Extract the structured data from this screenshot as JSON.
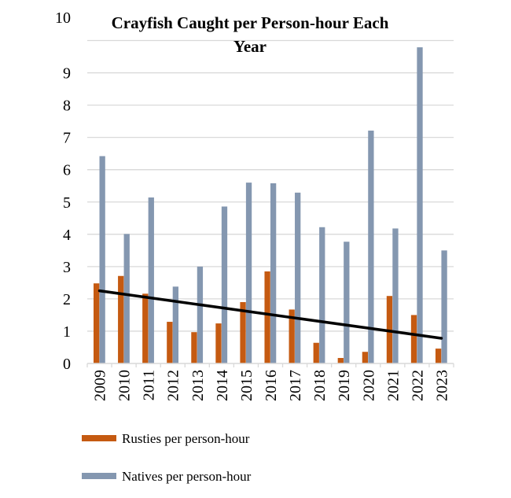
{
  "chart_data": {
    "type": "bar",
    "title": "Crayfish Caught per Person-hour Each Year",
    "title_lines": [
      "Crayfish Caught per Person-hour Each",
      "Year"
    ],
    "categories": [
      "2009",
      "2010",
      "2011",
      "2012",
      "2013",
      "2014",
      "2015",
      "2016",
      "2017",
      "2018",
      "2019",
      "2020",
      "2021",
      "2022",
      "2023"
    ],
    "series": [
      {
        "name": "Rusties per person-hour",
        "color": "#C55A11",
        "values": [
          2.48,
          2.71,
          2.16,
          1.29,
          0.97,
          1.24,
          1.9,
          2.85,
          1.67,
          0.64,
          0.17,
          0.36,
          2.09,
          1.5,
          0.46
        ]
      },
      {
        "name": "Natives per person-hour",
        "color": "#8497B0",
        "values": [
          6.42,
          4.01,
          5.14,
          2.38,
          3.0,
          4.86,
          5.6,
          5.58,
          5.29,
          4.22,
          3.77,
          7.21,
          4.18,
          9.79,
          3.5
        ]
      }
    ],
    "trendline": {
      "series": "Rusties per person-hour",
      "type": "linear",
      "start": 2.25,
      "end": 0.78,
      "color": "#000000"
    },
    "yticks": [
      "0",
      "1",
      "2",
      "3",
      "4",
      "5",
      "6",
      "7",
      "8",
      "9",
      "10"
    ],
    "ylim": [
      0,
      10
    ],
    "xlabel": "",
    "ylabel": "",
    "grid": true,
    "legend": "bottom"
  }
}
